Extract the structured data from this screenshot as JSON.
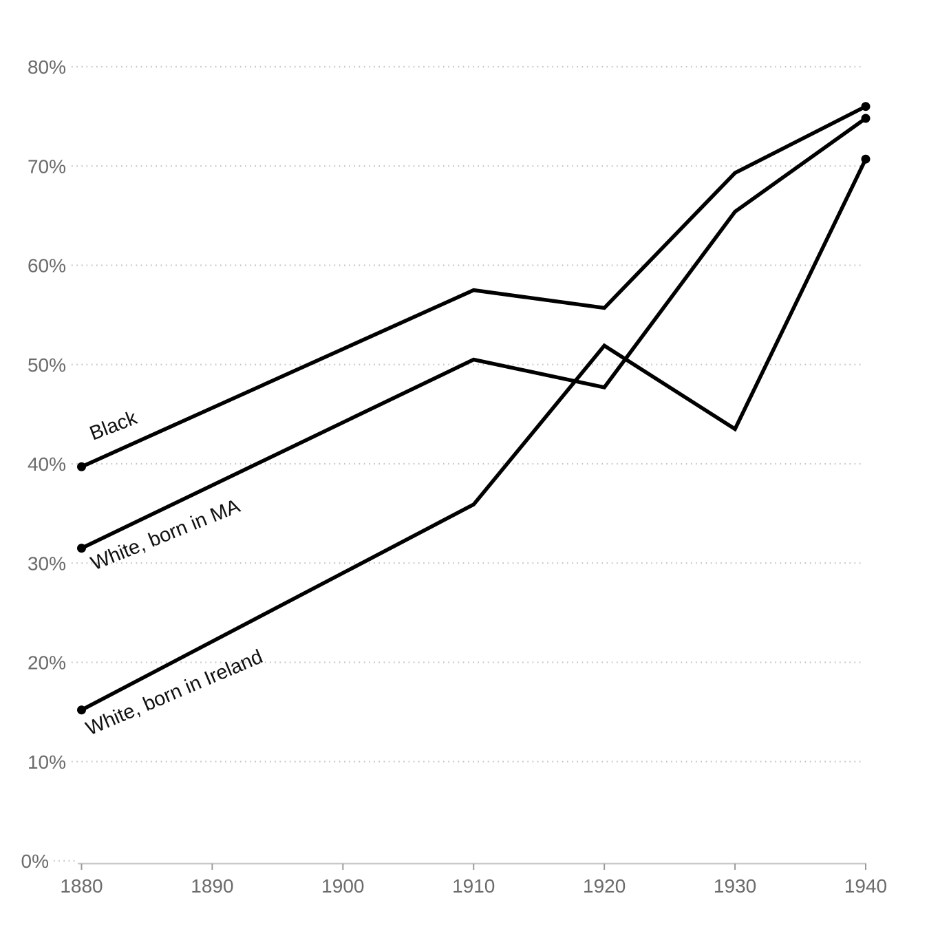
{
  "chart_data": {
    "type": "line",
    "x": [
      1880,
      1910,
      1920,
      1930,
      1940
    ],
    "series": [
      {
        "name": "Black",
        "values": [
          39.7,
          57.5,
          55.7,
          69.3,
          76.0
        ]
      },
      {
        "name": "White, born in MA",
        "values": [
          31.5,
          50.5,
          47.7,
          65.4,
          74.8
        ]
      },
      {
        "name": "White, born in Ireland",
        "values": [
          15.2,
          35.9,
          51.9,
          43.5,
          70.7
        ]
      }
    ],
    "title": "",
    "xlabel": "",
    "ylabel": "",
    "xlim": [
      1880,
      1940
    ],
    "ylim": [
      0,
      80
    ],
    "x_ticks": [
      "1880",
      "1890",
      "1900",
      "1910",
      "1920",
      "1930",
      "1940"
    ],
    "y_ticks": [
      "0%",
      "10%",
      "20%",
      "30%",
      "40%",
      "50%",
      "60%",
      "70%",
      "80%"
    ],
    "grid": "horizontal-dotted",
    "legend_position": "inline-labels-on-lines",
    "endpoint_dots": true,
    "colors": {
      "line": "#000000",
      "tick_text": "#6b6b6b",
      "series_label_text": "#111111",
      "gridline": "#c2c2c2",
      "axis_line": "#c9c9c9",
      "axis_tick": "#9a9a9a",
      "background": "#ffffff"
    }
  }
}
